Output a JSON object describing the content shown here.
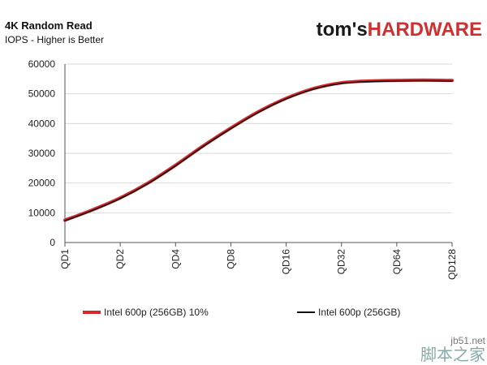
{
  "logo": {
    "part1": "tom's",
    "part2": "HARDWARE"
  },
  "watermark": {
    "site": "jb51.net",
    "cn": "脚本之家"
  },
  "chart_data": {
    "type": "line",
    "title": "4K Random Read",
    "subtitle": "IOPS - Higher is Better",
    "xlabel": "",
    "ylabel": "",
    "categories": [
      "QD1",
      "QD2",
      "QD4",
      "QD8",
      "QD16",
      "QD32",
      "QD64",
      "QD128"
    ],
    "x": [
      1,
      1.5,
      2,
      2.5,
      3,
      3.5,
      4,
      4.5,
      5,
      5.5,
      6,
      6.5,
      7,
      7.5,
      8
    ],
    "ylim": [
      0,
      60000
    ],
    "yticks": [
      0,
      10000,
      20000,
      30000,
      40000,
      50000,
      60000
    ],
    "ytick_labels": [
      "0",
      "10000",
      "20000",
      "30000",
      "40000",
      "50000",
      "60000"
    ],
    "grid": "horizontal",
    "legend_position": "bottom",
    "series": [
      {
        "name": "Intel 600p (256GB) 10%",
        "color": "#d9262c",
        "values": [
          7500,
          11000,
          15000,
          20000,
          26000,
          32500,
          38500,
          44000,
          48500,
          51800,
          53700,
          54300,
          54500,
          54600,
          54500
        ]
      },
      {
        "name": "Intel 600p (256GB)",
        "color": "#111111",
        "values": [
          7300,
          10800,
          14800,
          19800,
          25800,
          32300,
          38300,
          43800,
          48300,
          51600,
          53500,
          54100,
          54300,
          54400,
          54300
        ]
      }
    ]
  }
}
